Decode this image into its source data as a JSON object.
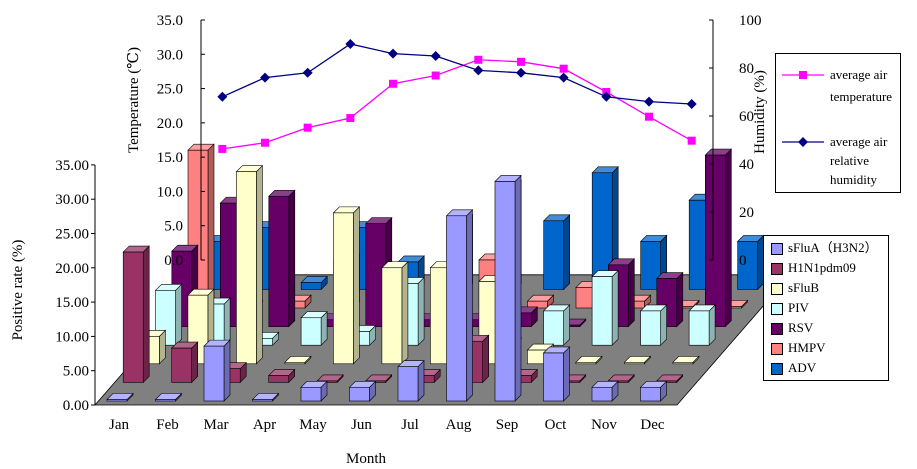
{
  "chart_data": [
    {
      "type": "bar",
      "title": "",
      "xlabel": "Month",
      "ylabel": "Positive rate (%)",
      "ylim": [
        0,
        35
      ],
      "yticks": [
        "0.00",
        "5.00",
        "10.00",
        "15.00",
        "20.00",
        "25.00",
        "30.00",
        "35.00"
      ],
      "categories": [
        "Jan",
        "Feb",
        "Mar",
        "Apr",
        "May",
        "Jun",
        "Jul",
        "Aug",
        "Sep",
        "Oct",
        "Nov",
        "Dec"
      ],
      "series": [
        {
          "name": "sFluA（H3N2）",
          "color": "#9999FF",
          "values": [
            0,
            0,
            8,
            0,
            2,
            2,
            5,
            27,
            32,
            7,
            2,
            2
          ]
        },
        {
          "name": "H1N1pdm09",
          "color": "#993366",
          "values": [
            19,
            5,
            2,
            1,
            0,
            0,
            1,
            6,
            1,
            0,
            0,
            0
          ]
        },
        {
          "name": "sFluB",
          "color": "#FFFFCC",
          "values": [
            4,
            10,
            28,
            0,
            22,
            14,
            14,
            12,
            2,
            0,
            0,
            0
          ]
        },
        {
          "name": "PIV",
          "color": "#CCFFFF",
          "values": [
            8,
            6,
            1,
            4,
            2,
            9,
            2,
            0,
            5,
            10,
            5,
            5
          ]
        },
        {
          "name": "RSV",
          "color": "#660066",
          "values": [
            11,
            18,
            19,
            1,
            15,
            1,
            1,
            2,
            0,
            9,
            7,
            25
          ]
        },
        {
          "name": "HMPV",
          "color": "#FF8080",
          "values": [
            23,
            0,
            1,
            7,
            1,
            0,
            7,
            1,
            3,
            1,
            0,
            0
          ]
        },
        {
          "name": "ADV",
          "color": "#0066CC",
          "values": [
            7,
            9,
            1,
            9,
            4,
            10,
            15,
            10,
            17,
            7,
            13,
            7
          ]
        }
      ],
      "legend_position": "right"
    },
    {
      "type": "line",
      "title": "",
      "categories": [
        "Jan",
        "Feb",
        "Mar",
        "Apr",
        "May",
        "Jun",
        "Jul",
        "Aug",
        "Sep",
        "Oct",
        "Nov",
        "Dec"
      ],
      "y_left": {
        "label": "Temperature (℃)",
        "ylim": [
          0,
          35
        ],
        "ticks": [
          "0.0",
          "5.0",
          "10.0",
          "15.0",
          "20.0",
          "25.0",
          "30.0",
          "35.0"
        ]
      },
      "y_right": {
        "label": "Humidity (%)",
        "ylim": [
          0,
          100
        ],
        "ticks": [
          "0",
          "20",
          "40",
          "60",
          "80",
          "100"
        ]
      },
      "series": [
        {
          "name": "average air temperature",
          "axis": "left",
          "color": "#FF00FF",
          "marker": "square",
          "values": [
            16.2,
            17.1,
            19.3,
            20.7,
            25.7,
            26.9,
            29.2,
            28.9,
            27.9,
            24.5,
            20.9,
            17.4
          ]
        },
        {
          "name": "average air relative humidity",
          "axis": "right",
          "color": "#000080",
          "marker": "diamond",
          "values": [
            68,
            76,
            78,
            90,
            86,
            85,
            79,
            78,
            76,
            68,
            66,
            65
          ]
        }
      ],
      "legend_position": "right"
    }
  ],
  "legends": {
    "lines": [
      {
        "label_lines": [
          "average air",
          "temperature"
        ],
        "color": "#FF00FF",
        "marker": "square"
      },
      {
        "label_lines": [
          "average air",
          "relative",
          "humidity"
        ],
        "color": "#000080",
        "marker": "diamond"
      }
    ],
    "bars": [
      {
        "label": "sFluA（H3N2）",
        "color": "#9999FF"
      },
      {
        "label": "H1N1pdm09",
        "color": "#993366"
      },
      {
        "label": "sFluB",
        "color": "#FFFFCC"
      },
      {
        "label": "PIV",
        "color": "#CCFFFF"
      },
      {
        "label": "RSV",
        "color": "#660066"
      },
      {
        "label": "HMPV",
        "color": "#FF8080"
      },
      {
        "label": "ADV",
        "color": "#0066CC"
      }
    ]
  }
}
